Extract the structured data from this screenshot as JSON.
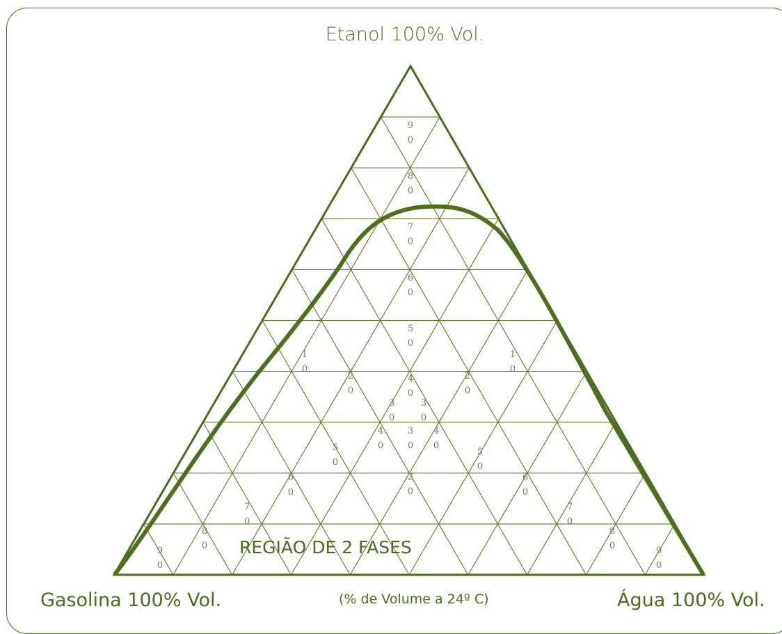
{
  "labels": {
    "top": "Etanol 100% Vol.",
    "bottom_left": "Gasolina 100% Vol.",
    "bottom_right": "Água 100% Vol.",
    "caption": "(% de Volume a 24º C)",
    "region": "REGIÃO DE 2 FASES"
  },
  "tick_values": [
    "10",
    "20",
    "30",
    "40",
    "50",
    "60",
    "70",
    "80",
    "90"
  ],
  "colors": {
    "line": "#4a6b1e",
    "grid": "#5b7a26",
    "curve": "#4f6f1f",
    "tick_text": "#6b7a57"
  }
}
